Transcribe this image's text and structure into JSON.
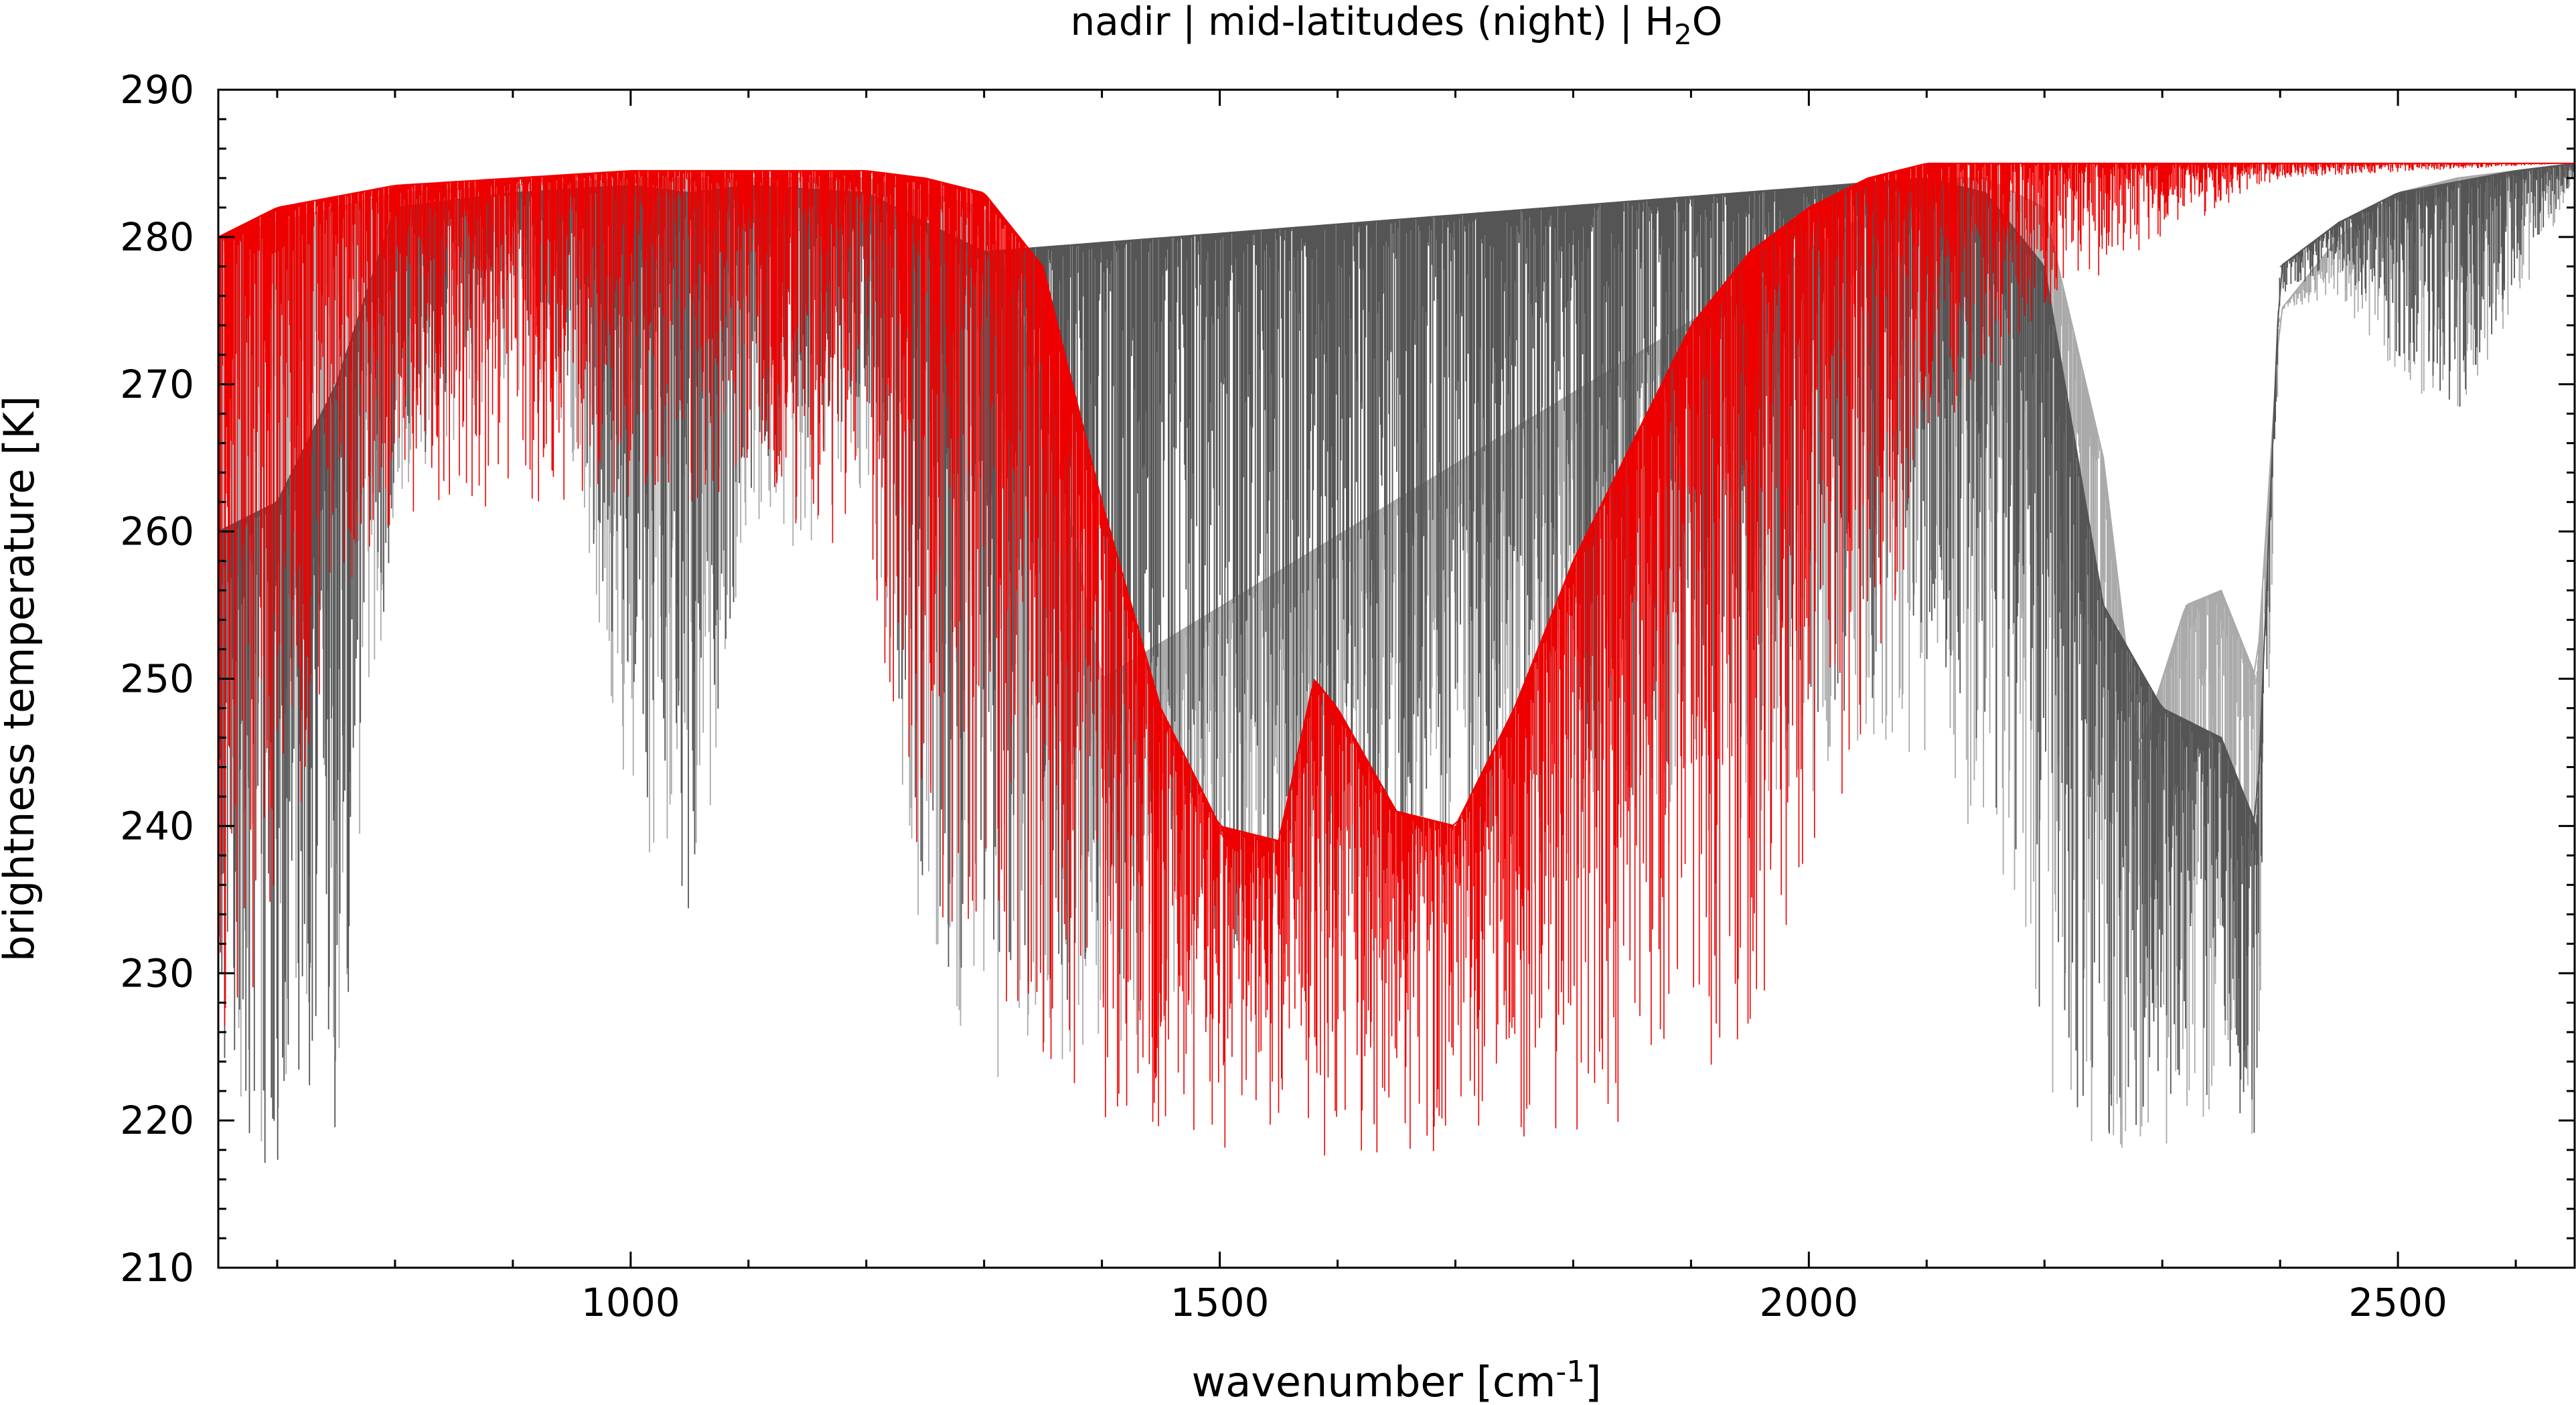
{
  "chart_data": {
    "type": "line",
    "title": {
      "prefix": "nadir | mid-latitudes (night) | H",
      "subscript": "2",
      "suffix": "O"
    },
    "xlabel": {
      "prefix": "wavenumber [cm",
      "superscript": "-1",
      "suffix": "]"
    },
    "ylabel": "brightness temperature [K]",
    "xlim": [
      650,
      2650
    ],
    "ylim": [
      210,
      290
    ],
    "xticks": [
      1000,
      1500,
      2000,
      2500
    ],
    "yticks": [
      210,
      220,
      230,
      240,
      250,
      260,
      270,
      280,
      290
    ],
    "grid": false,
    "legend": "none",
    "colors": {
      "red": "#ee0000",
      "dark_gray": "#555555",
      "light_gray": "#aaaaaa"
    },
    "series": [
      {
        "color": "red",
        "style": "dense spectral lines",
        "envelope": [
          [
            650,
            280
          ],
          [
            700,
            282
          ],
          [
            800,
            283.5
          ],
          [
            900,
            284
          ],
          [
            1000,
            284.5
          ],
          [
            1100,
            284.5
          ],
          [
            1200,
            284.5
          ],
          [
            1250,
            284
          ],
          [
            1300,
            283
          ],
          [
            1350,
            278
          ],
          [
            1400,
            262
          ],
          [
            1450,
            248
          ],
          [
            1500,
            240
          ],
          [
            1550,
            239
          ],
          [
            1580,
            250
          ],
          [
            1600,
            248
          ],
          [
            1650,
            241
          ],
          [
            1700,
            240
          ],
          [
            1750,
            248
          ],
          [
            1800,
            258
          ],
          [
            1850,
            266
          ],
          [
            1900,
            274
          ],
          [
            1950,
            279
          ],
          [
            2000,
            282
          ],
          [
            2050,
            284
          ],
          [
            2100,
            285
          ],
          [
            2200,
            285
          ],
          [
            2300,
            285
          ],
          [
            2400,
            285
          ],
          [
            2500,
            285
          ],
          [
            2650,
            285
          ]
        ],
        "floor": [
          [
            650,
            224
          ],
          [
            700,
            232
          ],
          [
            750,
            255
          ],
          [
            800,
            260
          ],
          [
            900,
            262
          ],
          [
            1000,
            262
          ],
          [
            1100,
            262
          ],
          [
            1200,
            258
          ],
          [
            1250,
            235
          ],
          [
            1300,
            230
          ],
          [
            1350,
            222
          ],
          [
            1400,
            219
          ],
          [
            1500,
            217.5
          ],
          [
            1600,
            217.5
          ],
          [
            1700,
            218
          ],
          [
            1800,
            219
          ],
          [
            1850,
            220
          ],
          [
            1900,
            222
          ],
          [
            1950,
            226
          ],
          [
            2000,
            232
          ],
          [
            2050,
            245
          ],
          [
            2100,
            265
          ],
          [
            2200,
            275
          ],
          [
            2300,
            280
          ],
          [
            2400,
            284
          ],
          [
            2650,
            285
          ]
        ]
      },
      {
        "color": "light_gray",
        "style": "dense spectral lines",
        "envelope": [
          [
            650,
            280
          ],
          [
            700,
            281
          ],
          [
            750,
            282
          ],
          [
            800,
            283
          ],
          [
            900,
            283.5
          ],
          [
            1000,
            284
          ],
          [
            1100,
            284
          ],
          [
            1200,
            284
          ],
          [
            1250,
            283
          ],
          [
            1300,
            282
          ],
          [
            1350,
            270
          ],
          [
            1400,
            250
          ],
          [
            2100,
            284
          ],
          [
            2150,
            284
          ],
          [
            2200,
            282
          ],
          [
            2250,
            265
          ],
          [
            2280,
            245
          ],
          [
            2320,
            255
          ],
          [
            2350,
            256
          ],
          [
            2380,
            250
          ],
          [
            2400,
            275
          ],
          [
            2450,
            280
          ],
          [
            2500,
            283
          ],
          [
            2550,
            284
          ],
          [
            2650,
            285
          ]
        ],
        "floor": [
          [
            650,
            218
          ],
          [
            700,
            218
          ],
          [
            750,
            222
          ],
          [
            800,
            262
          ],
          [
            900,
            270
          ],
          [
            950,
            265
          ],
          [
            1000,
            240
          ],
          [
            1050,
            234
          ],
          [
            1100,
            255
          ],
          [
            1200,
            262
          ],
          [
            1250,
            230
          ],
          [
            1300,
            222
          ],
          [
            2100,
            245
          ],
          [
            2150,
            238
          ],
          [
            2200,
            220
          ],
          [
            2250,
            218
          ],
          [
            2300,
            218
          ],
          [
            2350,
            220
          ],
          [
            2380,
            218
          ],
          [
            2400,
            275
          ],
          [
            2450,
            276
          ],
          [
            2500,
            270
          ],
          [
            2550,
            268
          ],
          [
            2600,
            275
          ],
          [
            2650,
            284
          ]
        ]
      },
      {
        "color": "dark_gray",
        "style": "dense spectral lines",
        "envelope": [
          [
            650,
            260
          ],
          [
            700,
            262
          ],
          [
            750,
            270
          ],
          [
            800,
            282
          ],
          [
            900,
            283
          ],
          [
            1000,
            283.5
          ],
          [
            1050,
            283
          ],
          [
            1100,
            283.5
          ],
          [
            1200,
            283
          ],
          [
            1250,
            281
          ],
          [
            1300,
            279
          ],
          [
            2100,
            284
          ],
          [
            2150,
            283
          ],
          [
            2200,
            278
          ],
          [
            2250,
            255
          ],
          [
            2300,
            248
          ],
          [
            2350,
            246
          ],
          [
            2380,
            240
          ],
          [
            2400,
            278
          ],
          [
            2450,
            281
          ],
          [
            2500,
            283
          ],
          [
            2600,
            284.5
          ],
          [
            2650,
            285
          ]
        ],
        "floor": [
          [
            650,
            217
          ],
          [
            700,
            217
          ],
          [
            750,
            219
          ],
          [
            800,
            262
          ],
          [
            900,
            275
          ],
          [
            950,
            268
          ],
          [
            1000,
            244
          ],
          [
            1050,
            234
          ],
          [
            1100,
            262
          ],
          [
            1200,
            268
          ],
          [
            1250,
            232
          ],
          [
            1300,
            224
          ],
          [
            2100,
            250
          ],
          [
            2150,
            245
          ],
          [
            2200,
            222
          ],
          [
            2250,
            219
          ],
          [
            2300,
            220
          ],
          [
            2350,
            222
          ],
          [
            2380,
            218
          ],
          [
            2400,
            276
          ],
          [
            2450,
            278
          ],
          [
            2500,
            272
          ],
          [
            2550,
            268
          ],
          [
            2600,
            277
          ],
          [
            2650,
            284
          ]
        ]
      }
    ]
  }
}
